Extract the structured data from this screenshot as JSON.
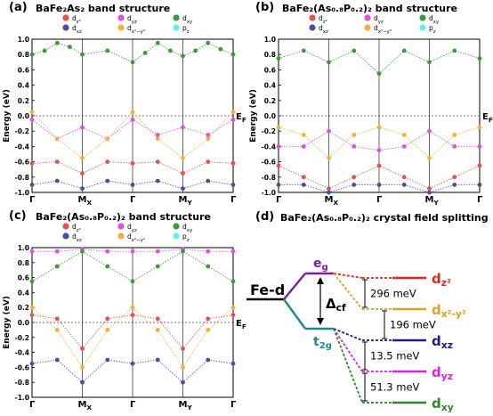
{
  "panels": [
    {
      "id": "a",
      "tag": "(a)",
      "title": "BaFe₂As₂ band structure",
      "ylabel": "Energy (eV)",
      "fermi_label": "E",
      "fermi_sub": "F",
      "tick_labels": [
        "1.0",
        "0.8",
        "0.6",
        "0.4",
        "0.2",
        "0.0",
        "-0.2",
        "-0.4",
        "-0.6",
        "-0.8",
        "-1.0"
      ],
      "kpoints": [
        {
          "main": "Γ",
          "sub": ""
        },
        {
          "main": "M",
          "sub": "X"
        },
        {
          "main": "Γ",
          "sub": ""
        },
        {
          "main": "M",
          "sub": "Y"
        },
        {
          "main": "Γ",
          "sub": ""
        }
      ]
    },
    {
      "id": "b",
      "tag": "(b)",
      "title": "BaFe₂(As₀.₈P₀.₂)₂ band structure",
      "ylabel": "Energy (eV)",
      "fermi_label": "E",
      "fermi_sub": "F",
      "tick_labels": [
        "1.0",
        "0.8",
        "0.6",
        "0.4",
        "0.2",
        "0.0",
        "-0.2",
        "-0.4",
        "-0.6",
        "-0.8",
        "-1.0"
      ],
      "kpoints": [
        {
          "main": "Γ",
          "sub": ""
        },
        {
          "main": "M",
          "sub": "X"
        },
        {
          "main": "Γ",
          "sub": ""
        },
        {
          "main": "M",
          "sub": "Y"
        },
        {
          "main": "Γ",
          "sub": ""
        }
      ]
    },
    {
      "id": "c",
      "tag": "(c)",
      "title": "BaFe₂(As₀.₈P₀.₂)₂ band structure",
      "ylabel": "Energy (eV)",
      "fermi_label": "E",
      "fermi_sub": "F",
      "tick_labels": [
        "1.0",
        "0.8",
        "0.6",
        "0.4",
        "0.2",
        "0.0",
        "-0.2",
        "-0.4",
        "-0.6",
        "-0.8",
        "-1.0"
      ],
      "kpoints": [
        {
          "main": "Γ",
          "sub": ""
        },
        {
          "main": "M",
          "sub": "X"
        },
        {
          "main": "Γ",
          "sub": ""
        },
        {
          "main": "M",
          "sub": "Y"
        },
        {
          "main": "Γ",
          "sub": ""
        }
      ]
    }
  ],
  "legend": [
    {
      "main": "d",
      "sub": "z²",
      "color": "#e8504f"
    },
    {
      "main": "d",
      "sub": "yz",
      "color": "#e24ee6"
    },
    {
      "main": "d",
      "sub": "xy",
      "color": "#3a9a3a"
    },
    {
      "main": "d",
      "sub": "xz",
      "color": "#4c4ca6"
    },
    {
      "main": "d",
      "sub": "x²−y²",
      "color": "#f3b03a"
    },
    {
      "main": "p",
      "sub": "z",
      "color": "#5ef0ee"
    }
  ],
  "panel_d": {
    "tag": "(d)",
    "title": "BaFe₂(As₀.₈P₀.₂)₂ crystal field splitting",
    "fe_d": "Fe-d",
    "eg": {
      "main": "e",
      "sub": "g"
    },
    "t2g": {
      "main": "t",
      "sub": "2g"
    },
    "delta": {
      "main": "Δ",
      "sub": "cf"
    },
    "splittings": [
      "296 meV",
      "196 meV",
      "13.5 meV",
      "51.3 meV"
    ],
    "orbitals": [
      {
        "main": "d",
        "sub": "z²",
        "color": "#e8231f"
      },
      {
        "main": "d",
        "sub": "x²-y²",
        "color": "#e0a020"
      },
      {
        "main": "d",
        "sub": "xz",
        "color": "#1a1a8c"
      },
      {
        "main": "d",
        "sub": "yz",
        "color": "#e020e0"
      },
      {
        "main": "d",
        "sub": "xy",
        "color": "#2a8a2a"
      }
    ],
    "colors": {
      "fe": "#000000",
      "eg": "#7a1fa0",
      "t2g": "#1f8a8a"
    }
  },
  "chart_data": [
    {
      "type": "line",
      "title": "BaFe₂As₂ band structure",
      "ylabel": "Energy (eV)",
      "ylim": [
        -1.0,
        1.0
      ],
      "x_kpoints": [
        "Γ",
        "MX",
        "Γ",
        "MY",
        "Γ"
      ],
      "series": [
        {
          "name": "dxy",
          "x": [
            0,
            0.25,
            0.5,
            0.75,
            1,
            1.5,
            2,
            2.25,
            2.5,
            2.75,
            3,
            3.25,
            3.5,
            3.75,
            4
          ],
          "y": [
            0.8,
            0.85,
            0.95,
            0.9,
            0.8,
            0.85,
            0.7,
            0.82,
            0.95,
            0.85,
            0.78,
            0.85,
            0.95,
            0.87,
            0.8
          ]
        },
        {
          "name": "dyz",
          "x": [
            0,
            0.5,
            1,
            1.5,
            2,
            2.5,
            3,
            3.5,
            4
          ],
          "y": [
            -0.05,
            -0.3,
            -0.15,
            -0.3,
            -0.05,
            -0.25,
            -0.15,
            -0.25,
            -0.05
          ]
        },
        {
          "name": "dx²−y²",
          "x": [
            0,
            0.5,
            1,
            1.5,
            2,
            2.5,
            3,
            3.5,
            4
          ],
          "y": [
            0.05,
            -0.3,
            -0.55,
            -0.3,
            0.05,
            -0.3,
            -0.55,
            -0.3,
            0.05
          ]
        },
        {
          "name": "dz²",
          "x": [
            0,
            0.5,
            1,
            1.5,
            2,
            2.5,
            3,
            3.5,
            4
          ],
          "y": [
            -0.62,
            -0.6,
            -0.75,
            -0.6,
            -0.62,
            -0.6,
            -0.75,
            -0.6,
            -0.62
          ]
        },
        {
          "name": "dxz",
          "x": [
            0,
            0.5,
            1,
            1.5,
            2,
            2.5,
            3,
            3.5,
            4
          ],
          "y": [
            -0.9,
            -0.85,
            -0.95,
            -0.85,
            -0.9,
            -0.85,
            -0.95,
            -0.85,
            -0.9
          ]
        }
      ]
    },
    {
      "type": "line",
      "title": "BaFe₂(As₀.₈P₀.₂)₂ band structure",
      "ylabel": "Energy (eV)",
      "ylim": [
        -1.0,
        1.0
      ],
      "x_kpoints": [
        "Γ",
        "MX",
        "Γ",
        "MY",
        "Γ"
      ],
      "series": [
        {
          "name": "dxy",
          "x": [
            0,
            0.5,
            1,
            1.5,
            2,
            2.5,
            3,
            3.5,
            4
          ],
          "y": [
            0.75,
            0.85,
            0.7,
            0.85,
            0.55,
            0.85,
            0.7,
            0.85,
            0.75
          ]
        },
        {
          "name": "dyz",
          "x": [
            0,
            0.5,
            1,
            1.5,
            2,
            2.5,
            3,
            3.5,
            4
          ],
          "y": [
            -0.4,
            -0.4,
            -0.2,
            -0.4,
            -0.45,
            -0.4,
            -0.2,
            -0.4,
            -0.4
          ]
        },
        {
          "name": "dx²−y²",
          "x": [
            0,
            0.5,
            1,
            1.5,
            2,
            2.5,
            3,
            3.5,
            4
          ],
          "y": [
            -0.15,
            -0.25,
            -0.55,
            -0.25,
            -0.15,
            -0.25,
            -0.55,
            -0.25,
            -0.15
          ]
        },
        {
          "name": "dz²",
          "x": [
            0,
            0.5,
            1,
            1.5,
            2,
            2.5,
            3,
            3.5,
            4
          ],
          "y": [
            -0.65,
            -0.8,
            -0.95,
            -0.8,
            -0.65,
            -0.8,
            -0.95,
            -0.8,
            -0.65
          ]
        },
        {
          "name": "dxz",
          "x": [
            0,
            0.5,
            1,
            1.5,
            2,
            2.5,
            3,
            3.5,
            4
          ],
          "y": [
            -0.9,
            -0.9,
            -1.0,
            -0.9,
            -0.9,
            -0.9,
            -1.0,
            -0.9,
            -0.9
          ]
        }
      ]
    },
    {
      "type": "line",
      "title": "BaFe₂(As₀.₈P₀.₂)₂ band structure",
      "ylabel": "Energy (eV)",
      "ylim": [
        -1.0,
        1.0
      ],
      "x_kpoints": [
        "Γ",
        "MX",
        "Γ",
        "MY",
        "Γ"
      ],
      "series": [
        {
          "name": "dyz",
          "x": [
            0,
            0.5,
            1,
            1.5,
            2,
            2.5,
            3,
            3.5,
            4
          ],
          "y": [
            0.95,
            0.95,
            0.98,
            0.95,
            0.95,
            0.95,
            0.98,
            0.95,
            0.95
          ]
        },
        {
          "name": "dxy",
          "x": [
            0,
            0.5,
            1,
            1.5,
            2,
            2.5,
            3,
            3.5,
            4
          ],
          "y": [
            0.55,
            0.75,
            0.95,
            0.75,
            0.55,
            0.75,
            0.95,
            0.75,
            0.55
          ]
        },
        {
          "name": "dx²−y²",
          "x": [
            0,
            0.5,
            1,
            1.5,
            2,
            2.5,
            3,
            3.5,
            4
          ],
          "y": [
            0.2,
            -0.1,
            -0.6,
            -0.1,
            0.2,
            -0.1,
            -0.6,
            -0.1,
            0.2
          ]
        },
        {
          "name": "dz²",
          "x": [
            0,
            0.5,
            1,
            1.5,
            2,
            2.5,
            3,
            3.5,
            4
          ],
          "y": [
            0.1,
            0.05,
            -0.35,
            0.05,
            0.1,
            0.05,
            -0.35,
            0.05,
            0.1
          ]
        },
        {
          "name": "dxz",
          "x": [
            0,
            0.5,
            1,
            1.5,
            2,
            2.5,
            3,
            3.5,
            4
          ],
          "y": [
            -0.55,
            -0.5,
            -0.8,
            -0.5,
            -0.55,
            -0.5,
            -0.8,
            -0.5,
            -0.55
          ]
        }
      ]
    }
  ]
}
